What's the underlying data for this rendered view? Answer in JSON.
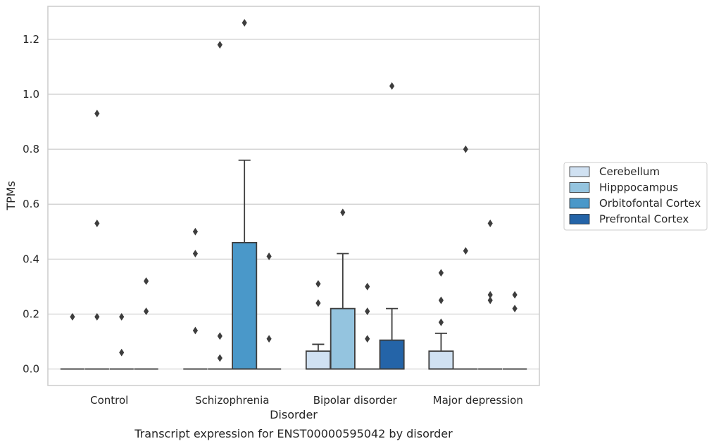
{
  "chart_data": {
    "type": "box",
    "xlabel": "Disorder",
    "ylabel": "TPMs",
    "caption": "Transcript expression for ENST00000595042 by disorder",
    "ylim": [
      -0.06,
      1.32
    ],
    "yticks": [
      "0.0",
      "0.2",
      "0.4",
      "0.6",
      "0.8",
      "1.0",
      "1.2"
    ],
    "grid": "horizontal",
    "legend_position": "right",
    "categories": [
      "Control",
      "Schizophrenia",
      "Bipolar disorder",
      "Major depression"
    ],
    "series": [
      {
        "name": "Cerebellum",
        "color": "#d0e1f2",
        "boxes": [
          {
            "q1": 0,
            "median": 0,
            "q3": 0,
            "whisker_low": 0,
            "whisker_high": 0,
            "outliers": [
              0.19
            ]
          },
          {
            "q1": 0,
            "median": 0,
            "q3": 0,
            "whisker_low": 0,
            "whisker_high": 0,
            "outliers": [
              0.5,
              0.42,
              0.14
            ]
          },
          {
            "q1": 0,
            "median": 0,
            "q3": 0.065,
            "whisker_low": 0,
            "whisker_high": 0.09,
            "outliers": [
              0.31,
              0.24
            ]
          },
          {
            "q1": 0,
            "median": 0,
            "q3": 0.065,
            "whisker_low": 0,
            "whisker_high": 0.13,
            "outliers": [
              0.35,
              0.25,
              0.17
            ]
          }
        ]
      },
      {
        "name": "Hipppocampus",
        "color": "#94c4df",
        "boxes": [
          {
            "q1": 0,
            "median": 0,
            "q3": 0,
            "whisker_low": 0,
            "whisker_high": 0,
            "outliers": [
              0.93,
              0.53,
              0.19
            ]
          },
          {
            "q1": 0,
            "median": 0,
            "q3": 0,
            "whisker_low": 0,
            "whisker_high": 0,
            "outliers": [
              1.18,
              0.12,
              0.04
            ]
          },
          {
            "q1": 0,
            "median": 0,
            "q3": 0.22,
            "whisker_low": 0,
            "whisker_high": 0.42,
            "outliers": [
              0.57
            ]
          },
          {
            "q1": 0,
            "median": 0,
            "q3": 0,
            "whisker_low": 0,
            "whisker_high": 0,
            "outliers": [
              0.8,
              0.43
            ]
          }
        ]
      },
      {
        "name": "Orbitofontal Cortex",
        "color": "#4a98c9",
        "boxes": [
          {
            "q1": 0,
            "median": 0,
            "q3": 0,
            "whisker_low": 0,
            "whisker_high": 0,
            "outliers": [
              0.19,
              0.06
            ]
          },
          {
            "q1": 0,
            "median": 0,
            "q3": 0.46,
            "whisker_low": 0,
            "whisker_high": 0.76,
            "outliers": [
              1.26
            ]
          },
          {
            "q1": 0,
            "median": 0,
            "q3": 0,
            "whisker_low": 0,
            "whisker_high": 0,
            "outliers": [
              0.3,
              0.21,
              0.11
            ]
          },
          {
            "q1": 0,
            "median": 0,
            "q3": 0,
            "whisker_low": 0,
            "whisker_high": 0,
            "outliers": [
              0.53,
              0.27,
              0.25
            ]
          }
        ]
      },
      {
        "name": "Prefrontal Cortex",
        "color": "#2464a8",
        "boxes": [
          {
            "q1": 0,
            "median": 0,
            "q3": 0,
            "whisker_low": 0,
            "whisker_high": 0,
            "outliers": [
              0.32,
              0.21
            ]
          },
          {
            "q1": 0,
            "median": 0,
            "q3": 0,
            "whisker_low": 0,
            "whisker_high": 0,
            "outliers": [
              0.41,
              0.11
            ]
          },
          {
            "q1": 0,
            "median": 0,
            "q3": 0.105,
            "whisker_low": 0,
            "whisker_high": 0.22,
            "outliers": [
              1.03
            ]
          },
          {
            "q1": 0,
            "median": 0,
            "q3": 0,
            "whisker_low": 0,
            "whisker_high": 0,
            "outliers": [
              0.27,
              0.22
            ]
          }
        ]
      }
    ]
  }
}
